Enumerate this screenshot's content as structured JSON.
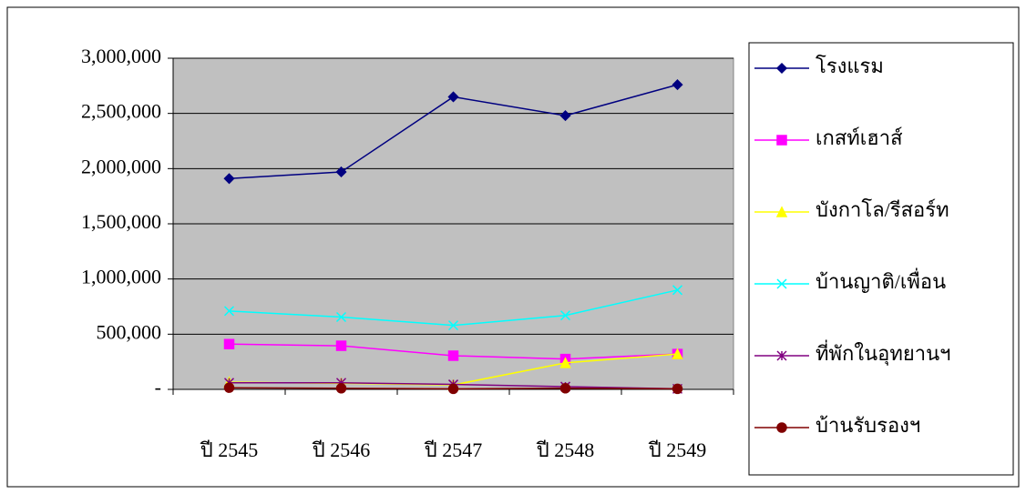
{
  "chart_data": {
    "type": "line",
    "categories": [
      "ปี 2545",
      "ปี 2546",
      "ปี 2547",
      "ปี 2548",
      "ปี 2549"
    ],
    "series": [
      {
        "name": "โรงแรม",
        "color": "#000080",
        "marker": "diamond",
        "values": [
          1910000,
          1970000,
          2650000,
          2480000,
          2760000
        ]
      },
      {
        "name": "เกสท์เฮาส์",
        "color": "#ff00ff",
        "marker": "square",
        "values": [
          410000,
          395000,
          305000,
          275000,
          320000
        ]
      },
      {
        "name": "บังกาโล/รีสอร์ท",
        "color": "#ffff00",
        "marker": "triangle",
        "values": [
          65000,
          55000,
          40000,
          240000,
          320000
        ]
      },
      {
        "name": "บ้านญาติ/เพื่อน",
        "color": "#00ffff",
        "marker": "x",
        "values": [
          710000,
          655000,
          580000,
          670000,
          900000
        ]
      },
      {
        "name": "ที่พักในอุทยานฯ",
        "color": "#800080",
        "marker": "star",
        "values": [
          60000,
          60000,
          45000,
          25000,
          5000
        ]
      },
      {
        "name": "บ้านรับรองฯ",
        "color": "#800000",
        "marker": "circle",
        "values": [
          15000,
          10000,
          5000,
          10000,
          5000
        ]
      }
    ],
    "ylim": [
      0,
      3000000
    ],
    "yticks": [
      {
        "value": 0,
        "label": "-"
      },
      {
        "value": 500000,
        "label": "500,000"
      },
      {
        "value": 1000000,
        "label": "1,000,000"
      },
      {
        "value": 1500000,
        "label": "1,500,000"
      },
      {
        "value": 2000000,
        "label": "2,000,000"
      },
      {
        "value": 2500000,
        "label": "2,500,000"
      },
      {
        "value": 3000000,
        "label": "3,000,000"
      }
    ],
    "grid": true,
    "legend": "right"
  }
}
